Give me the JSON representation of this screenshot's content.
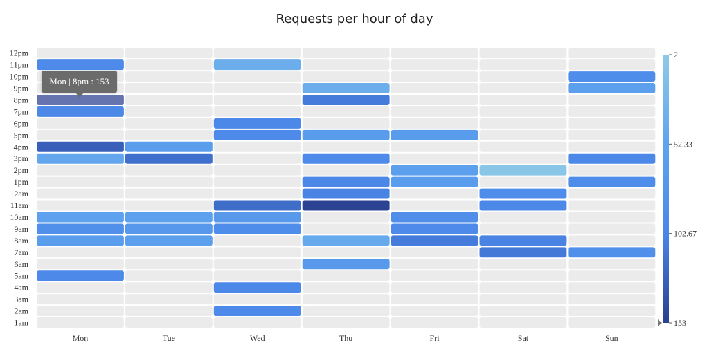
{
  "chart_data": {
    "type": "heatmap",
    "title": "Requests per hour of day",
    "x_categories": [
      "Mon",
      "Tue",
      "Wed",
      "Thu",
      "Fri",
      "Sat",
      "Sun"
    ],
    "y_categories": [
      "1am",
      "2am",
      "3am",
      "4am",
      "5am",
      "6am",
      "7am",
      "8am",
      "9am",
      "10am",
      "11am",
      "12am",
      "1pm",
      "2pm",
      "3pm",
      "4pm",
      "5pm",
      "6pm",
      "7pm",
      "8pm",
      "9pm",
      "10pm",
      "11pm",
      "12pm"
    ],
    "cells": [
      {
        "day": "Mon",
        "hour": "11pm",
        "value": 95
      },
      {
        "day": "Mon",
        "hour": "8pm",
        "value": 153
      },
      {
        "day": "Mon",
        "hour": "7pm",
        "value": 100
      },
      {
        "day": "Mon",
        "hour": "4pm",
        "value": 130
      },
      {
        "day": "Mon",
        "hour": "3pm",
        "value": 48
      },
      {
        "day": "Mon",
        "hour": "10am",
        "value": 55
      },
      {
        "day": "Mon",
        "hour": "9am",
        "value": 85
      },
      {
        "day": "Mon",
        "hour": "8am",
        "value": 62
      },
      {
        "day": "Mon",
        "hour": "5am",
        "value": 98
      },
      {
        "day": "Tue",
        "hour": "4pm",
        "value": 62
      },
      {
        "day": "Tue",
        "hour": "3pm",
        "value": 118
      },
      {
        "day": "Tue",
        "hour": "10am",
        "value": 58
      },
      {
        "day": "Tue",
        "hour": "9am",
        "value": 72
      },
      {
        "day": "Tue",
        "hour": "8am",
        "value": 60
      },
      {
        "day": "Wed",
        "hour": "11pm",
        "value": 38
      },
      {
        "day": "Wed",
        "hour": "6pm",
        "value": 100
      },
      {
        "day": "Wed",
        "hour": "5pm",
        "value": 95
      },
      {
        "day": "Wed",
        "hour": "11am",
        "value": 120
      },
      {
        "day": "Wed",
        "hour": "10am",
        "value": 70
      },
      {
        "day": "Wed",
        "hour": "9am",
        "value": 90
      },
      {
        "day": "Wed",
        "hour": "4am",
        "value": 100
      },
      {
        "day": "Wed",
        "hour": "2am",
        "value": 95
      },
      {
        "day": "Thu",
        "hour": "9pm",
        "value": 38
      },
      {
        "day": "Thu",
        "hour": "8pm",
        "value": 110
      },
      {
        "day": "Thu",
        "hour": "5pm",
        "value": 65
      },
      {
        "day": "Thu",
        "hour": "3pm",
        "value": 95
      },
      {
        "day": "Thu",
        "hour": "1pm",
        "value": 100
      },
      {
        "day": "Thu",
        "hour": "12am",
        "value": 105
      },
      {
        "day": "Thu",
        "hour": "11am",
        "value": 150
      },
      {
        "day": "Thu",
        "hour": "8am",
        "value": 45
      },
      {
        "day": "Thu",
        "hour": "6am",
        "value": 70
      },
      {
        "day": "Fri",
        "hour": "5pm",
        "value": 65
      },
      {
        "day": "Fri",
        "hour": "2pm",
        "value": 60
      },
      {
        "day": "Fri",
        "hour": "1pm",
        "value": 62
      },
      {
        "day": "Fri",
        "hour": "10am",
        "value": 88
      },
      {
        "day": "Fri",
        "hour": "9am",
        "value": 95
      },
      {
        "day": "Fri",
        "hour": "8am",
        "value": 110
      },
      {
        "day": "Sat",
        "hour": "2pm",
        "value": 8
      },
      {
        "day": "Sat",
        "hour": "12am",
        "value": 90
      },
      {
        "day": "Sat",
        "hour": "11am",
        "value": 100
      },
      {
        "day": "Sat",
        "hour": "8am",
        "value": 105
      },
      {
        "day": "Sat",
        "hour": "7am",
        "value": 112
      },
      {
        "day": "Sun",
        "hour": "10pm",
        "value": 90
      },
      {
        "day": "Sun",
        "hour": "9pm",
        "value": 60
      },
      {
        "day": "Sun",
        "hour": "3pm",
        "value": 100
      },
      {
        "day": "Sun",
        "hour": "1pm",
        "value": 90
      },
      {
        "day": "Sun",
        "hour": "7am",
        "value": 85
      }
    ],
    "color_scale": {
      "min": 2,
      "max": 153,
      "ticks": [
        "2",
        "52.33",
        "102.67",
        "153"
      ],
      "colors": [
        "#8ecae6",
        "#5fa3ee",
        "#4a86e8",
        "#2a3f8f"
      ]
    },
    "empty_cell_color": "#ebebeb",
    "legend_position": "right"
  },
  "tooltip": {
    "text": "Mon | 8pm : 153",
    "day": "Mon",
    "hour": "8pm"
  }
}
